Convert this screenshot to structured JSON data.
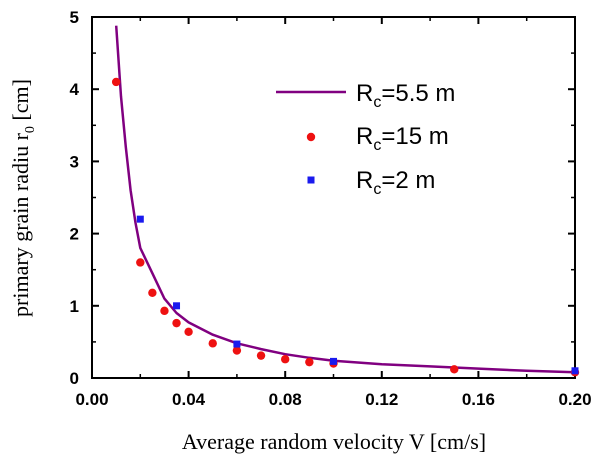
{
  "chart_data": {
    "type": "line",
    "xlabel": "Average random velocity  V [cm/s]",
    "ylabel_main": "primary grain radiu r",
    "ylabel_sub": "0",
    "ylabel_unit": " [cm]",
    "xlim": [
      0.0,
      0.2
    ],
    "ylim": [
      0,
      5
    ],
    "x_ticks": [
      "0.00",
      "0.04",
      "0.08",
      "0.12",
      "0.16",
      "0.20"
    ],
    "y_ticks": [
      "0",
      "1",
      "2",
      "3",
      "4",
      "5"
    ],
    "grid": false,
    "legend_position": "top-right",
    "series": [
      {
        "name_main": "R",
        "name_sub": "c",
        "name_rest": "=5.5 m",
        "kind": "line",
        "color": "#800080",
        "x": [
          0.01,
          0.012,
          0.014,
          0.016,
          0.018,
          0.02,
          0.025,
          0.03,
          0.035,
          0.04,
          0.05,
          0.06,
          0.07,
          0.08,
          0.09,
          0.1,
          0.12,
          0.14,
          0.16,
          0.18,
          0.2
        ],
        "y": [
          4.88,
          3.9,
          3.2,
          2.6,
          2.15,
          1.8,
          1.45,
          1.1,
          0.9,
          0.77,
          0.6,
          0.48,
          0.4,
          0.33,
          0.28,
          0.24,
          0.19,
          0.16,
          0.13,
          0.1,
          0.08
        ]
      },
      {
        "name_main": "R",
        "name_sub": "c",
        "name_rest": "=15 m",
        "kind": "circle",
        "color": "#ee1111",
        "x": [
          0.01,
          0.02,
          0.025,
          0.03,
          0.035,
          0.04,
          0.05,
          0.06,
          0.07,
          0.08,
          0.09,
          0.1,
          0.15,
          0.2
        ],
        "y": [
          4.1,
          1.6,
          1.18,
          0.93,
          0.76,
          0.64,
          0.48,
          0.38,
          0.31,
          0.26,
          0.22,
          0.2,
          0.12,
          0.08
        ]
      },
      {
        "name_main": "R",
        "name_sub": "c",
        "name_rest": "=2 m",
        "kind": "square",
        "color": "#1a1aee",
        "x": [
          0.02,
          0.035,
          0.06,
          0.1,
          0.2
        ],
        "y": [
          2.2,
          1.0,
          0.47,
          0.23,
          0.1
        ]
      }
    ]
  }
}
